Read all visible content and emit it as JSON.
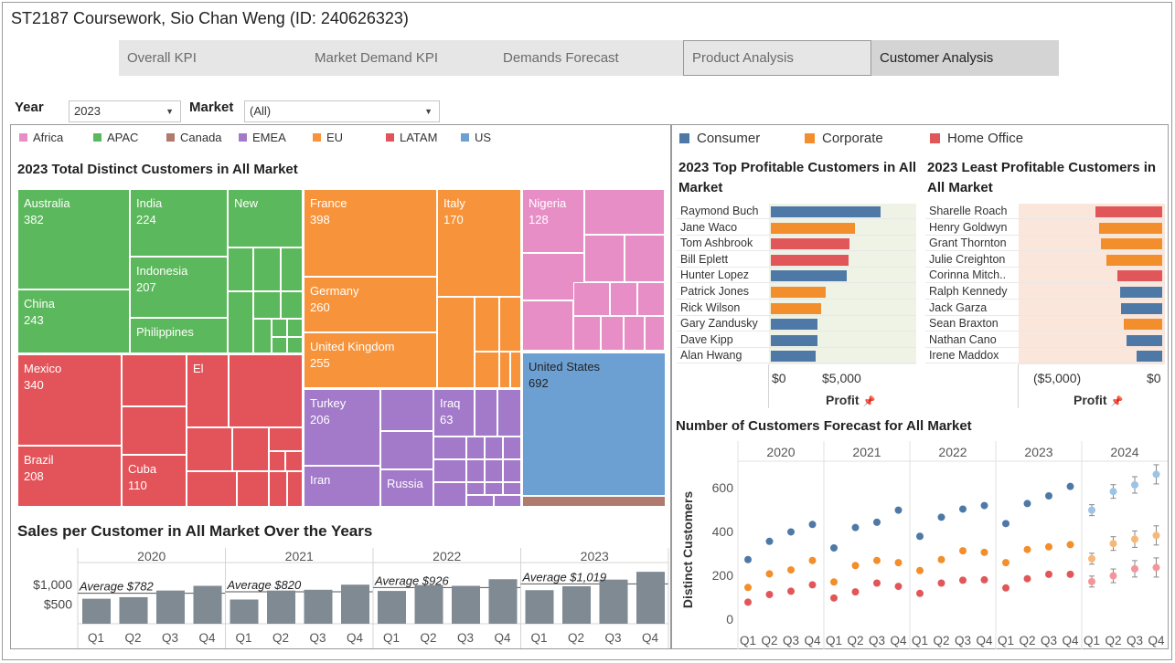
{
  "title": "ST2187 Coursework, Sio Chan Weng (ID: 240626323)",
  "tabs": [
    {
      "label": "Overall KPI"
    },
    {
      "label": "Market Demand KPI"
    },
    {
      "label": "Demands Forecast"
    },
    {
      "label": "Product Analysis"
    },
    {
      "label": "Customer Analysis"
    }
  ],
  "filters": {
    "year_label": "Year",
    "year_value": "2023",
    "market_label": "Market",
    "market_value": "(All)"
  },
  "market_legend": [
    {
      "label": "Africa",
      "color": "#e88ec6"
    },
    {
      "label": "APAC",
      "color": "#5cb85c"
    },
    {
      "label": "Canada",
      "color": "#b07a6e"
    },
    {
      "label": "EMEA",
      "color": "#a27ac9"
    },
    {
      "label": "EU",
      "color": "#f7943b"
    },
    {
      "label": "LATAM",
      "color": "#e3545a"
    },
    {
      "label": "US",
      "color": "#6c9fd2"
    }
  ],
  "segment_legend": [
    {
      "label": "Consumer",
      "color": "#4e79a7"
    },
    {
      "label": "Corporate",
      "color": "#f28e2b"
    },
    {
      "label": "Home Office",
      "color": "#e15759"
    }
  ],
  "treemap": {
    "title": "2023 Total Distinct Customers in All Market",
    "labels": {
      "australia": {
        "name": "Australia",
        "value": "382"
      },
      "india": {
        "name": "India",
        "value": "224"
      },
      "new": {
        "name": "New"
      },
      "indonesia": {
        "name": "Indonesia",
        "value": "207"
      },
      "china": {
        "name": "China",
        "value": "243"
      },
      "philippines": {
        "name": "Philippines"
      },
      "france": {
        "name": "France",
        "value": "398"
      },
      "italy": {
        "name": "Italy",
        "value": "170"
      },
      "germany": {
        "name": "Germany",
        "value": "260"
      },
      "uk": {
        "name": "United Kingdom",
        "value": "255"
      },
      "nigeria": {
        "name": "Nigeria",
        "value": "128"
      },
      "mexico": {
        "name": "Mexico",
        "value": "340"
      },
      "el": {
        "name": "El"
      },
      "brazil": {
        "name": "Brazil",
        "value": "208"
      },
      "cuba": {
        "name": "Cuba",
        "value": "110"
      },
      "turkey": {
        "name": "Turkey",
        "value": "206"
      },
      "iraq": {
        "name": "Iraq",
        "value": "63"
      },
      "iran": {
        "name": "Iran"
      },
      "russia": {
        "name": "Russia"
      },
      "us": {
        "name": "United States",
        "value": "692"
      }
    }
  },
  "sales": {
    "title": "Sales per Customer in All Market Over the Years",
    "years": [
      "2020",
      "2021",
      "2022",
      "2023"
    ],
    "quarters": [
      "Q1",
      "Q2",
      "Q3",
      "Q4"
    ],
    "averages": [
      "Average $782",
      "Average $820",
      "Average $926",
      "Average $1,019"
    ],
    "ticks": [
      "$1,000",
      "$500"
    ]
  },
  "top_customers": {
    "title": "2023 Top Profitable Customers in All Market",
    "axis_title": "Profit",
    "ticks": [
      "$0",
      "$5,000"
    ]
  },
  "least_customers": {
    "title": "2023 Least Profitable Customers in All Market",
    "axis_title": "Profit",
    "ticks": [
      "($5,000)",
      "$0"
    ]
  },
  "forecast": {
    "title": "Number of Customers Forecast for All Market",
    "ylabel": "Distinct Customers",
    "ticks": [
      "600",
      "400",
      "200",
      "0"
    ]
  },
  "chart_data": [
    {
      "type": "bar",
      "title": "Sales per Customer in All Market Over the Years",
      "categories": [
        "2020 Q1",
        "2020 Q2",
        "2020 Q3",
        "2020 Q4",
        "2021 Q1",
        "2021 Q2",
        "2021 Q3",
        "2021 Q4",
        "2022 Q1",
        "2022 Q2",
        "2022 Q3",
        "2022 Q4",
        "2023 Q1",
        "2023 Q2",
        "2023 Q3",
        "2023 Q4"
      ],
      "values": [
        640,
        680,
        850,
        970,
        620,
        850,
        870,
        1000,
        840,
        990,
        970,
        1140,
        860,
        960,
        1130,
        1330
      ],
      "reference_lines": [
        782,
        782,
        782,
        782,
        820,
        820,
        820,
        820,
        926,
        926,
        926,
        926,
        1019,
        1019,
        1019,
        1019
      ],
      "ylim": [
        0,
        1450
      ]
    },
    {
      "type": "bar",
      "title": "2023 Top Profitable Customers in All Market",
      "categories": [
        "Raymond Buch",
        "Jane Waco",
        "Tom Ashbrook",
        "Bill Eplett",
        "Hunter Lopez",
        "Patrick Jones",
        "Rick Wilson",
        "Gary Zandusky",
        "Dave Kipp",
        "Alan Hwang"
      ],
      "values": [
        6800,
        5200,
        4900,
        4800,
        4700,
        3400,
        3100,
        2900,
        2900,
        2800
      ],
      "segments": [
        "Consumer",
        "Corporate",
        "Home Office",
        "Home Office",
        "Consumer",
        "Corporate",
        "Corporate",
        "Consumer",
        "Consumer",
        "Consumer"
      ],
      "xlabel": "Profit",
      "xlim": [
        -100,
        9000
      ]
    },
    {
      "type": "bar",
      "title": "2023 Least Profitable Customers in All Market",
      "categories": [
        "Sharelle Roach",
        "Henry Goldwyn",
        "Grant Thornton",
        "Julie Creighton",
        "Corinna Mitch..",
        "Ralph Kennedy",
        "Jack Garza",
        "Sean Braxton",
        "Nathan Cano",
        "Irene Maddox"
      ],
      "values": [
        -4900,
        -4600,
        -4500,
        -4100,
        -3300,
        -3100,
        -3000,
        -2800,
        -2600,
        -1900
      ],
      "segments": [
        "Home Office",
        "Corporate",
        "Corporate",
        "Corporate",
        "Home Office",
        "Consumer",
        "Consumer",
        "Corporate",
        "Consumer",
        "Consumer"
      ],
      "xlabel": "Profit",
      "xlim": [
        -10500,
        200
      ]
    },
    {
      "type": "scatter",
      "title": "Number of Customers Forecast for All Market",
      "x": [
        "2020 Q1",
        "2020 Q2",
        "2020 Q3",
        "2020 Q4",
        "2021 Q1",
        "2021 Q2",
        "2021 Q3",
        "2021 Q4",
        "2022 Q1",
        "2022 Q2",
        "2022 Q3",
        "2022 Q4",
        "2023 Q1",
        "2023 Q2",
        "2023 Q3",
        "2023 Q4",
        "2024 Q1",
        "2024 Q2",
        "2024 Q3",
        "2024 Q4"
      ],
      "ylabel": "Distinct Customers",
      "ylim": [
        -20,
        720
      ],
      "forecast_from_index": 16,
      "series": [
        {
          "name": "Consumer",
          "values": [
            272,
            355,
            398,
            432,
            325,
            418,
            442,
            497,
            378,
            465,
            502,
            518,
            436,
            527,
            562,
            605,
            497,
            582,
            612,
            660
          ]
        },
        {
          "name": "Corporate",
          "values": [
            145,
            207,
            225,
            268,
            170,
            245,
            268,
            258,
            222,
            272,
            312,
            305,
            258,
            318,
            330,
            340,
            276,
            345,
            365,
            382
          ]
        },
        {
          "name": "Home Office",
          "values": [
            78,
            113,
            128,
            157,
            97,
            125,
            165,
            150,
            118,
            165,
            178,
            180,
            143,
            185,
            205,
            205,
            172,
            198,
            230,
            236
          ]
        }
      ]
    }
  ]
}
